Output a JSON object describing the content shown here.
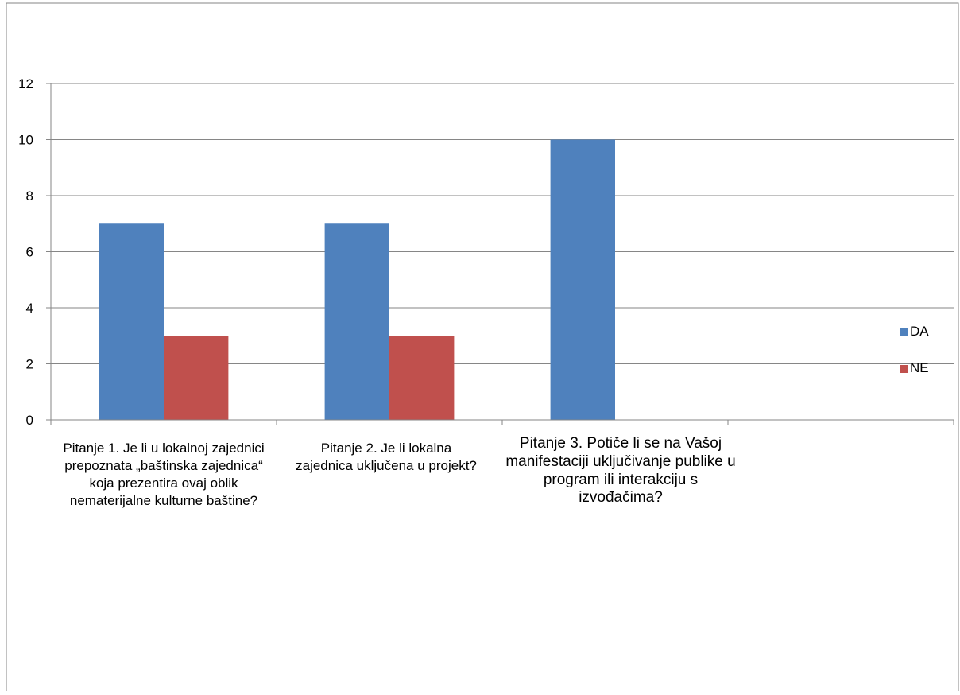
{
  "chart_data": {
    "type": "bar",
    "categories": [
      "Pitanje 1. Je li u lokalnoj zajednici prepoznata „baštinska zajednica“ koja prezentira ovaj oblik nematerijalne kulturne baštine?",
      "Pitanje 2. Je li lokalna zajednica uključena u projekt?",
      "Pitanje 3. Potiče li se na Vašoj manifestaciji uključivanje publike u program ili interakciju s izvođačima?",
      ""
    ],
    "series": [
      {
        "name": "DA",
        "color": "#4F81BD",
        "values": [
          7,
          7,
          10,
          null
        ]
      },
      {
        "name": "NE",
        "color": "#C0504D",
        "values": [
          3,
          3,
          null,
          null
        ]
      }
    ],
    "title": "",
    "xlabel": "",
    "ylabel": "",
    "ylim": [
      0,
      12
    ],
    "yticks": [
      "0",
      "2",
      "4",
      "6",
      "8",
      "10",
      "12"
    ],
    "grid": true,
    "legend": "right"
  }
}
